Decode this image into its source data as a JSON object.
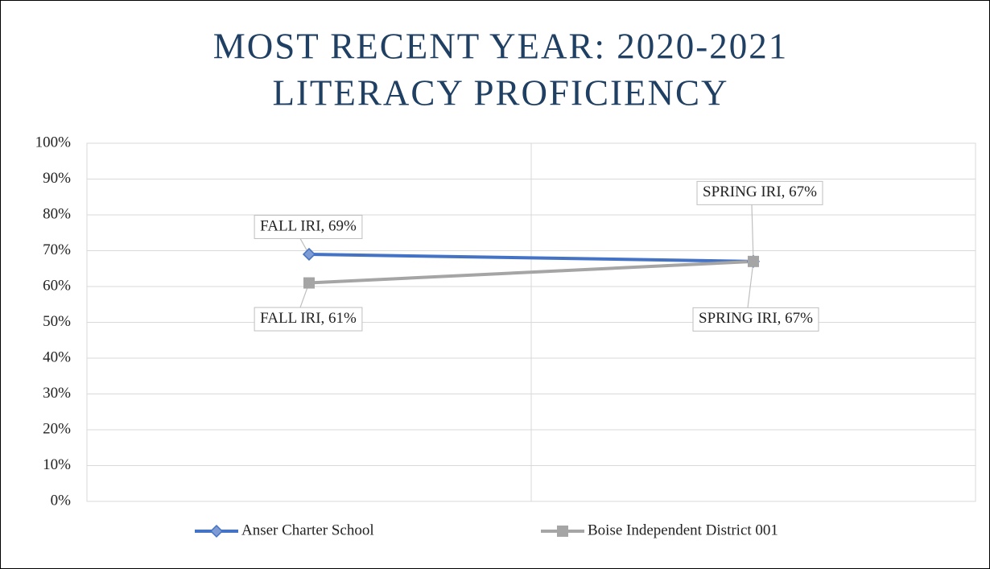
{
  "chart_data": {
    "type": "line",
    "title": [
      "MOST RECENT YEAR: 2020-2021",
      "LITERACY PROFICIENCY"
    ],
    "categories": [
      "FALL IRI",
      "SPRING IRI"
    ],
    "series": [
      {
        "name": "Anser Charter School",
        "color": "#4472c4",
        "values": [
          69,
          67
        ],
        "value_labels": [
          "FALL IRI, 69%",
          "SPRING IRI, 67%"
        ]
      },
      {
        "name": "Boise Independent District 001",
        "color": "#a5a5a5",
        "values": [
          61,
          67
        ],
        "value_labels": [
          "FALL IRI, 61%",
          "SPRING IRI, 67%"
        ]
      }
    ],
    "ylim": [
      0,
      100
    ],
    "yticks": [
      {
        "value": 0,
        "label": "0%"
      },
      {
        "value": 10,
        "label": "10%"
      },
      {
        "value": 20,
        "label": "20%"
      },
      {
        "value": 30,
        "label": "30%"
      },
      {
        "value": 40,
        "label": "40%"
      },
      {
        "value": 50,
        "label": "50%"
      },
      {
        "value": 60,
        "label": "60%"
      },
      {
        "value": 70,
        "label": "70%"
      },
      {
        "value": 80,
        "label": "80%"
      },
      {
        "value": 90,
        "label": "90%"
      },
      {
        "value": 100,
        "label": "100%"
      }
    ],
    "grid": true,
    "legend": "bottom"
  }
}
